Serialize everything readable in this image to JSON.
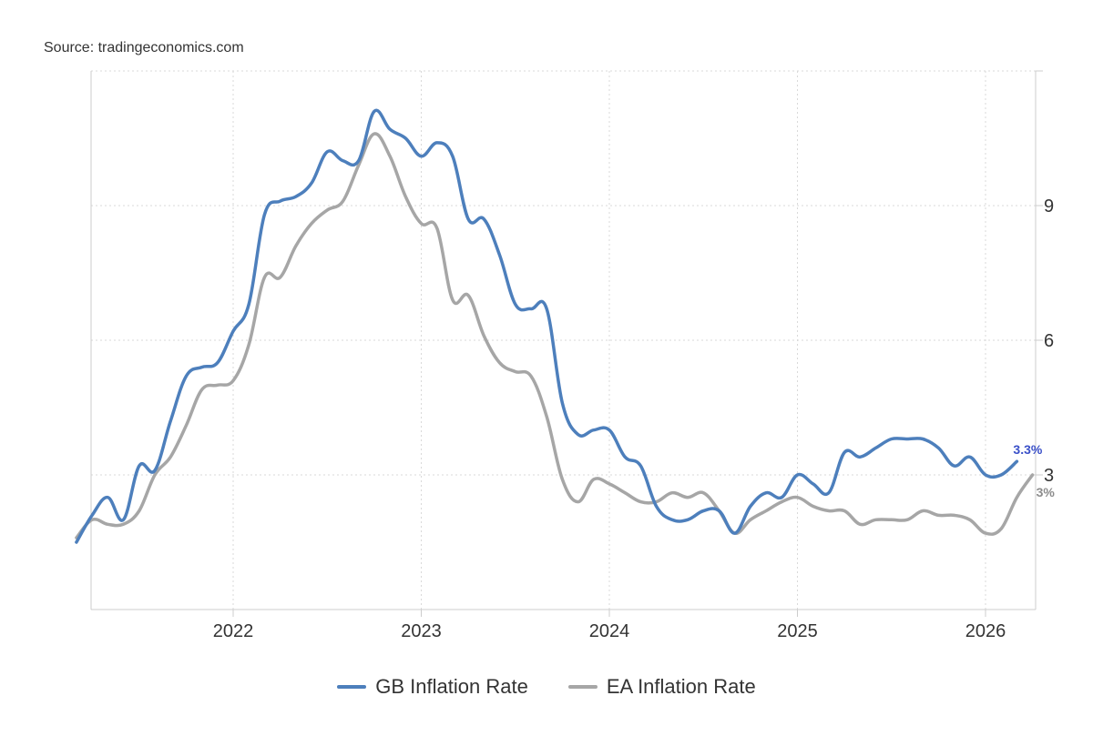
{
  "source": "Source: tradingeconomics.com",
  "chart_data": {
    "type": "line",
    "title": "",
    "xlabel": "",
    "ylabel": "",
    "x_ticks": [
      {
        "label": "2022",
        "date": 2022.0
      },
      {
        "label": "2023",
        "date": 2023.0
      },
      {
        "label": "2024",
        "date": 2024.0
      },
      {
        "label": "2025",
        "date": 2025.0
      },
      {
        "label": "2026",
        "date": 2026.0
      }
    ],
    "y_ticks": [
      3,
      6,
      9
    ],
    "xlim": [
      "2021-03",
      "2026-03"
    ],
    "ylim": [
      0,
      12
    ],
    "grid": true,
    "legend": "bottom",
    "series": [
      {
        "name": "GB Inflation Rate",
        "color": "#4d7fbc",
        "end_label": "3.3%",
        "end_label_color": "#3a50c8",
        "points": [
          [
            "2021-03",
            1.5
          ],
          [
            "2021-04",
            2.1
          ],
          [
            "2021-05",
            2.5
          ],
          [
            "2021-06",
            2.0
          ],
          [
            "2021-07",
            3.2
          ],
          [
            "2021-08",
            3.1
          ],
          [
            "2021-09",
            4.2
          ],
          [
            "2021-10",
            5.2
          ],
          [
            "2021-11",
            5.4
          ],
          [
            "2021-12",
            5.5
          ],
          [
            "2022-01",
            6.2
          ],
          [
            "2022-02",
            6.8
          ],
          [
            "2022-03",
            8.8
          ],
          [
            "2022-04",
            9.1
          ],
          [
            "2022-05",
            9.2
          ],
          [
            "2022-06",
            9.5
          ],
          [
            "2022-07",
            10.2
          ],
          [
            "2022-08",
            10.0
          ],
          [
            "2022-09",
            10.0
          ],
          [
            "2022-10",
            11.1
          ],
          [
            "2022-11",
            10.7
          ],
          [
            "2022-12",
            10.5
          ],
          [
            "2023-01",
            10.1
          ],
          [
            "2023-02",
            10.4
          ],
          [
            "2023-03",
            10.1
          ],
          [
            "2023-04",
            8.7
          ],
          [
            "2023-05",
            8.7
          ],
          [
            "2023-06",
            7.9
          ],
          [
            "2023-07",
            6.8
          ],
          [
            "2023-08",
            6.7
          ],
          [
            "2023-09",
            6.7
          ],
          [
            "2023-10",
            4.6
          ],
          [
            "2023-11",
            3.9
          ],
          [
            "2023-12",
            4.0
          ],
          [
            "2024-01",
            4.0
          ],
          [
            "2024-02",
            3.4
          ],
          [
            "2024-03",
            3.2
          ],
          [
            "2024-04",
            2.3
          ],
          [
            "2024-05",
            2.0
          ],
          [
            "2024-06",
            2.0
          ],
          [
            "2024-07",
            2.2
          ],
          [
            "2024-08",
            2.2
          ],
          [
            "2024-09",
            1.7
          ],
          [
            "2024-10",
            2.3
          ],
          [
            "2024-11",
            2.6
          ],
          [
            "2024-12",
            2.5
          ],
          [
            "2025-01",
            3.0
          ],
          [
            "2025-02",
            2.8
          ],
          [
            "2025-03",
            2.6
          ],
          [
            "2025-04",
            3.5
          ],
          [
            "2025-05",
            3.4
          ],
          [
            "2025-06",
            3.6
          ],
          [
            "2025-07",
            3.8
          ],
          [
            "2025-08",
            3.8
          ],
          [
            "2025-09",
            3.8
          ],
          [
            "2025-10",
            3.6
          ],
          [
            "2025-11",
            3.2
          ],
          [
            "2025-12",
            3.4
          ],
          [
            "2026-01",
            3.0
          ],
          [
            "2026-02",
            3.0
          ],
          [
            "2026-03",
            3.3
          ]
        ]
      },
      {
        "name": "EA Inflation Rate",
        "color": "#a6a6a6",
        "end_label": "3%",
        "end_label_color": "#8c8c8c",
        "points": [
          [
            "2021-03",
            1.6
          ],
          [
            "2021-04",
            2.0
          ],
          [
            "2021-05",
            1.9
          ],
          [
            "2021-06",
            1.9
          ],
          [
            "2021-07",
            2.2
          ],
          [
            "2021-08",
            3.0
          ],
          [
            "2021-09",
            3.4
          ],
          [
            "2021-10",
            4.1
          ],
          [
            "2021-11",
            4.9
          ],
          [
            "2021-12",
            5.0
          ],
          [
            "2022-01",
            5.1
          ],
          [
            "2022-02",
            5.9
          ],
          [
            "2022-03",
            7.4
          ],
          [
            "2022-04",
            7.4
          ],
          [
            "2022-05",
            8.1
          ],
          [
            "2022-06",
            8.6
          ],
          [
            "2022-07",
            8.9
          ],
          [
            "2022-08",
            9.1
          ],
          [
            "2022-09",
            9.9
          ],
          [
            "2022-10",
            10.6
          ],
          [
            "2022-11",
            10.1
          ],
          [
            "2022-12",
            9.2
          ],
          [
            "2023-01",
            8.6
          ],
          [
            "2023-02",
            8.5
          ],
          [
            "2023-03",
            6.9
          ],
          [
            "2023-04",
            7.0
          ],
          [
            "2023-05",
            6.1
          ],
          [
            "2023-06",
            5.5
          ],
          [
            "2023-07",
            5.3
          ],
          [
            "2023-08",
            5.2
          ],
          [
            "2023-09",
            4.3
          ],
          [
            "2023-10",
            2.9
          ],
          [
            "2023-11",
            2.4
          ],
          [
            "2023-12",
            2.9
          ],
          [
            "2024-01",
            2.8
          ],
          [
            "2024-02",
            2.6
          ],
          [
            "2024-03",
            2.4
          ],
          [
            "2024-04",
            2.4
          ],
          [
            "2024-05",
            2.6
          ],
          [
            "2024-06",
            2.5
          ],
          [
            "2024-07",
            2.6
          ],
          [
            "2024-08",
            2.2
          ],
          [
            "2024-09",
            1.7
          ],
          [
            "2024-10",
            2.0
          ],
          [
            "2024-11",
            2.2
          ],
          [
            "2024-12",
            2.4
          ],
          [
            "2025-01",
            2.5
          ],
          [
            "2025-02",
            2.3
          ],
          [
            "2025-03",
            2.2
          ],
          [
            "2025-04",
            2.2
          ],
          [
            "2025-05",
            1.9
          ],
          [
            "2025-06",
            2.0
          ],
          [
            "2025-07",
            2.0
          ],
          [
            "2025-08",
            2.0
          ],
          [
            "2025-09",
            2.2
          ],
          [
            "2025-10",
            2.1
          ],
          [
            "2025-11",
            2.1
          ],
          [
            "2025-12",
            2.0
          ],
          [
            "2026-01",
            1.7
          ],
          [
            "2026-02",
            1.8
          ],
          [
            "2026-03",
            2.5
          ],
          [
            "2026-04",
            3.0
          ]
        ]
      }
    ]
  }
}
